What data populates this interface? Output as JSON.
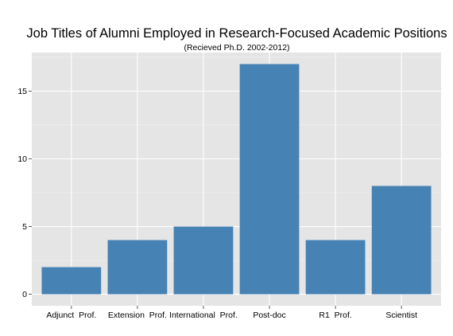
{
  "colors": {
    "panel": "#e5e5e5",
    "grid_major": "#ffffff",
    "grid_minor": "#f2f2f2",
    "bar": "#4682b4",
    "text": "#000000"
  },
  "chart_data": {
    "type": "bar",
    "title": "Job Titles of Alumni Employed in Research-Focused Academic Positions",
    "subtitle": "(Recieved Ph.D. 2002-2012)",
    "xlabel": "",
    "ylabel": "",
    "categories": [
      "Adjunct  Prof.",
      "Extension  Prof.",
      "International  Prof.",
      "Post-doc",
      "R1  Prof.",
      "Scientist"
    ],
    "values": [
      2,
      4,
      5,
      17,
      4,
      8
    ],
    "yticks": [
      0,
      5,
      10,
      15
    ],
    "ylim": [
      -0.85,
      17.85
    ],
    "grid": true,
    "legend": "none"
  }
}
